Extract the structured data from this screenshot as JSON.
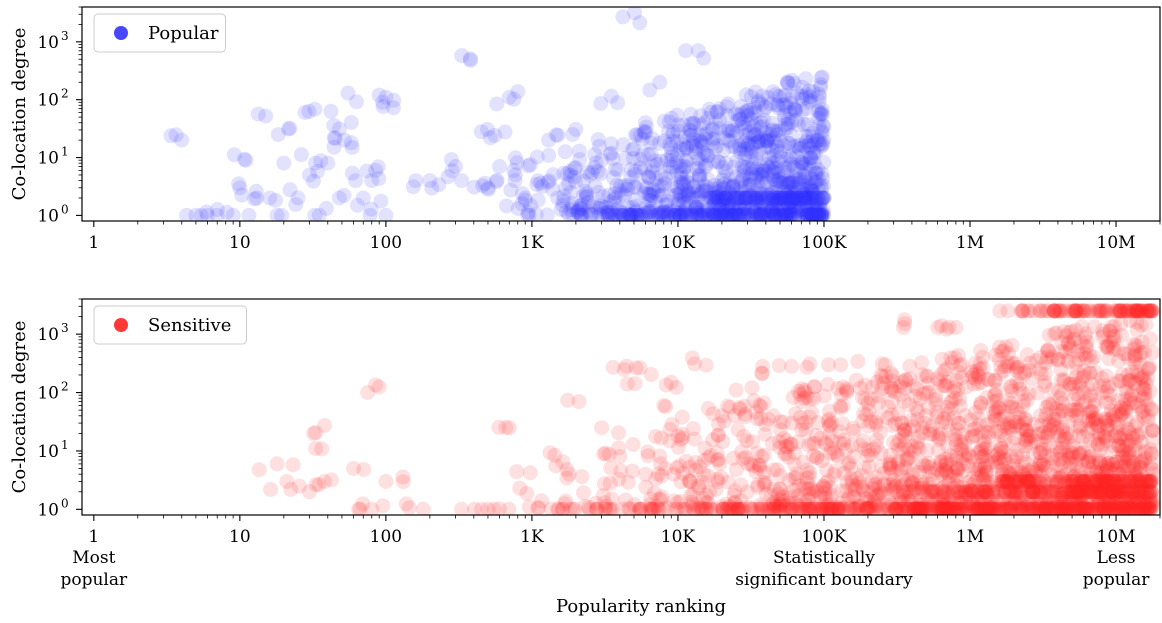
{
  "chart_data": [
    {
      "type": "scatter",
      "title": "",
      "xlabel": "",
      "ylabel": "Co-location degree",
      "xscale": "log",
      "yscale": "log",
      "xlim": [
        0.83,
        20000000
      ],
      "ylim": [
        0.8,
        4000
      ],
      "x_ticks": [
        {
          "value": 1,
          "label": "1"
        },
        {
          "value": 10,
          "label": "10"
        },
        {
          "value": 100,
          "label": "100"
        },
        {
          "value": 1000,
          "label": "1K"
        },
        {
          "value": 10000,
          "label": "10K"
        },
        {
          "value": 100000,
          "label": "100K"
        },
        {
          "value": 1000000,
          "label": "1M"
        },
        {
          "value": 10000000,
          "label": "10M"
        }
      ],
      "y_ticks": [
        {
          "value": 1,
          "base": "10",
          "exp": "0"
        },
        {
          "value": 10,
          "base": "10",
          "exp": "1"
        },
        {
          "value": 100,
          "base": "10",
          "exp": "2"
        },
        {
          "value": 1000,
          "base": "10",
          "exp": "3"
        }
      ],
      "legend": {
        "placement": "top-left",
        "entries": [
          {
            "name": "Popular",
            "color": "#3333ff"
          }
        ]
      },
      "series": [
        {
          "name": "Popular",
          "color": "#3333ff",
          "point_alpha": 0.14,
          "x_range": [
            4,
            100000
          ],
          "points": [
            [
              4,
              20
            ],
            [
              5,
              1
            ],
            [
              6,
              1
            ],
            [
              7,
              1
            ],
            [
              9,
              1
            ],
            [
              10,
              3
            ],
            [
              11,
              9
            ],
            [
              13,
              2
            ],
            [
              15,
              52
            ],
            [
              16,
              2
            ],
            [
              18,
              1
            ],
            [
              20,
              8
            ],
            [
              22,
              32
            ],
            [
              25,
              2
            ],
            [
              28,
              60
            ],
            [
              30,
              5
            ],
            [
              33,
              8
            ],
            [
              35,
              1
            ],
            [
              40,
              8
            ],
            [
              42,
              63
            ],
            [
              44,
              36
            ],
            [
              48,
              2
            ],
            [
              52,
              20
            ],
            [
              55,
              130
            ],
            [
              58,
              18
            ],
            [
              62,
              4
            ],
            [
              70,
              2
            ],
            [
              80,
              4
            ],
            [
              85,
              6
            ],
            [
              90,
              120
            ],
            [
              95,
              90
            ],
            [
              100,
              1
            ],
            [
              160,
              4
            ],
            [
              200,
              4
            ],
            [
              300,
              7
            ],
            [
              330,
              4
            ],
            [
              380,
              480
            ],
            [
              450,
              28
            ],
            [
              500,
              3
            ],
            [
              520,
              22
            ],
            [
              600,
              7
            ],
            [
              700,
              110
            ],
            [
              750,
              6
            ],
            [
              800,
              138
            ],
            [
              900,
              2
            ],
            [
              1100,
              4
            ],
            [
              1300,
              20
            ],
            [
              1500,
              2
            ],
            [
              1700,
              3
            ],
            [
              1900,
              25
            ],
            [
              2500,
              5
            ],
            [
              3000,
              9
            ],
            [
              3500,
              115
            ],
            [
              4200,
              2700
            ],
            [
              5000,
              14
            ],
            [
              6000,
              40
            ],
            [
              7500,
              200
            ],
            [
              9000,
              9
            ],
            [
              15000,
              520
            ],
            [
              18000,
              40
            ]
          ],
          "dense_bands": [
            {
              "y": 1,
              "x_from": 2000,
              "x_to": 100000
            },
            {
              "y": 2,
              "x_from": 10000,
              "x_to": 100000
            }
          ]
        }
      ]
    },
    {
      "type": "scatter",
      "title": "",
      "xlabel": "Popularity ranking",
      "ylabel": "Co-location degree",
      "xscale": "log",
      "yscale": "log",
      "xlim": [
        0.83,
        20000000
      ],
      "ylim": [
        0.8,
        4000
      ],
      "x_ticks": [
        {
          "value": 1,
          "label": "1"
        },
        {
          "value": 10,
          "label": "10"
        },
        {
          "value": 100,
          "label": "100"
        },
        {
          "value": 1000,
          "label": "1K"
        },
        {
          "value": 10000,
          "label": "10K"
        },
        {
          "value": 100000,
          "label": "100K"
        },
        {
          "value": 1000000,
          "label": "1M"
        },
        {
          "value": 10000000,
          "label": "10M"
        }
      ],
      "y_ticks": [
        {
          "value": 1,
          "base": "10",
          "exp": "0"
        },
        {
          "value": 10,
          "base": "10",
          "exp": "1"
        },
        {
          "value": 100,
          "base": "10",
          "exp": "2"
        },
        {
          "value": 1000,
          "base": "10",
          "exp": "3"
        }
      ],
      "annotations": [
        {
          "at": 1,
          "lines": [
            "Most",
            "popular"
          ]
        },
        {
          "at": 100000,
          "lines": [
            "Statistically",
            "significant boundary"
          ]
        },
        {
          "at": 10000000,
          "lines": [
            "Less",
            "popular"
          ]
        }
      ],
      "legend": {
        "placement": "top-left",
        "entries": [
          {
            "name": "Sensitive",
            "color": "#ff2222"
          }
        ]
      },
      "series": [
        {
          "name": "Sensitive",
          "color": "#ff2222",
          "point_alpha": 0.14,
          "x_range": [
            18,
            18000000
          ],
          "points": [
            [
              18,
              6
            ],
            [
              21,
              3
            ],
            [
              30,
              2
            ],
            [
              32,
              20
            ],
            [
              33,
              11
            ],
            [
              38,
              3
            ],
            [
              60,
              5
            ],
            [
              65,
              1
            ],
            [
              80,
              1
            ],
            [
              90,
              125
            ],
            [
              100,
              3
            ],
            [
              180,
              1
            ],
            [
              330,
              1
            ],
            [
              500,
              1
            ],
            [
              700,
              25
            ],
            [
              1500,
              1
            ],
            [
              1800,
              4
            ],
            [
              2100,
              70
            ],
            [
              3000,
              25
            ],
            [
              3600,
              270
            ],
            [
              4000,
              8
            ],
            [
              4500,
              140
            ],
            [
              5500,
              265
            ],
            [
              6000,
              4
            ],
            [
              8000,
              60
            ],
            [
              9000,
              150
            ],
            [
              10000,
              18
            ],
            [
              13000,
              310
            ],
            [
              15000,
              4
            ],
            [
              20000,
              40
            ],
            [
              25000,
              110
            ],
            [
              30000,
              6
            ],
            [
              38000,
              280
            ],
            [
              45000,
              40
            ],
            [
              55000,
              15
            ],
            [
              60000,
              280
            ],
            [
              70000,
              70
            ],
            [
              80000,
              310
            ],
            [
              90000,
              2
            ],
            [
              110000,
              20
            ],
            [
              130000,
              300
            ],
            [
              160000,
              8
            ],
            [
              200000,
              65
            ],
            [
              250000,
              310
            ],
            [
              300000,
              14
            ],
            [
              350000,
              1300
            ],
            [
              400000,
              4
            ],
            [
              500000,
              40
            ],
            [
              600000,
              1300
            ],
            [
              700000,
              150
            ],
            [
              800000,
              1300
            ],
            [
              900000,
              6
            ]
          ],
          "dense_bands": [
            {
              "y": 1,
              "x_from": 1300,
              "x_to": 18000000
            },
            {
              "y": 2,
              "x_from": 300000,
              "x_to": 18000000
            },
            {
              "y": 3,
              "x_from": 1000000,
              "x_to": 18000000
            },
            {
              "y": 2500,
              "x_from": 1500000,
              "x_to": 18000000
            }
          ]
        }
      ]
    }
  ]
}
